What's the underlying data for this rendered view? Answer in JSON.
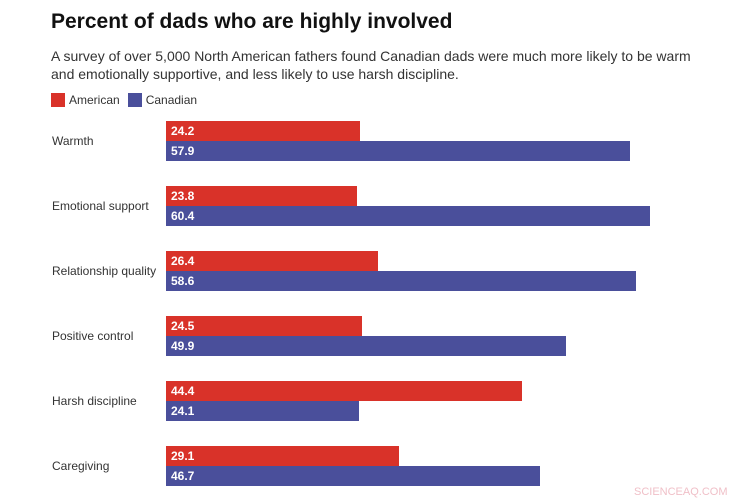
{
  "chart_data": {
    "type": "bar",
    "orientation": "horizontal",
    "title": "Percent of dads who are highly involved",
    "subtitle": "A survey of over 5,000 North American fathers found Canadian dads were much more likely to be warm and emotionally supportive, and less likely to use harsh discipline.",
    "categories": [
      "Warmth",
      "Emotional support",
      "Relationship quality",
      "Positive control",
      "Harsh discipline",
      "Caregiving"
    ],
    "series": [
      {
        "name": "American",
        "color": "#d93229",
        "values": [
          24.2,
          23.8,
          26.4,
          24.5,
          44.4,
          29.1
        ]
      },
      {
        "name": "Canadian",
        "color": "#4a4f9b",
        "values": [
          57.9,
          60.4,
          58.6,
          49.9,
          24.1,
          46.7
        ]
      }
    ],
    "xlim": [
      0,
      60.4
    ],
    "grid": false,
    "legend": "top-left"
  },
  "watermark": "SCIENCEAQ.COM"
}
